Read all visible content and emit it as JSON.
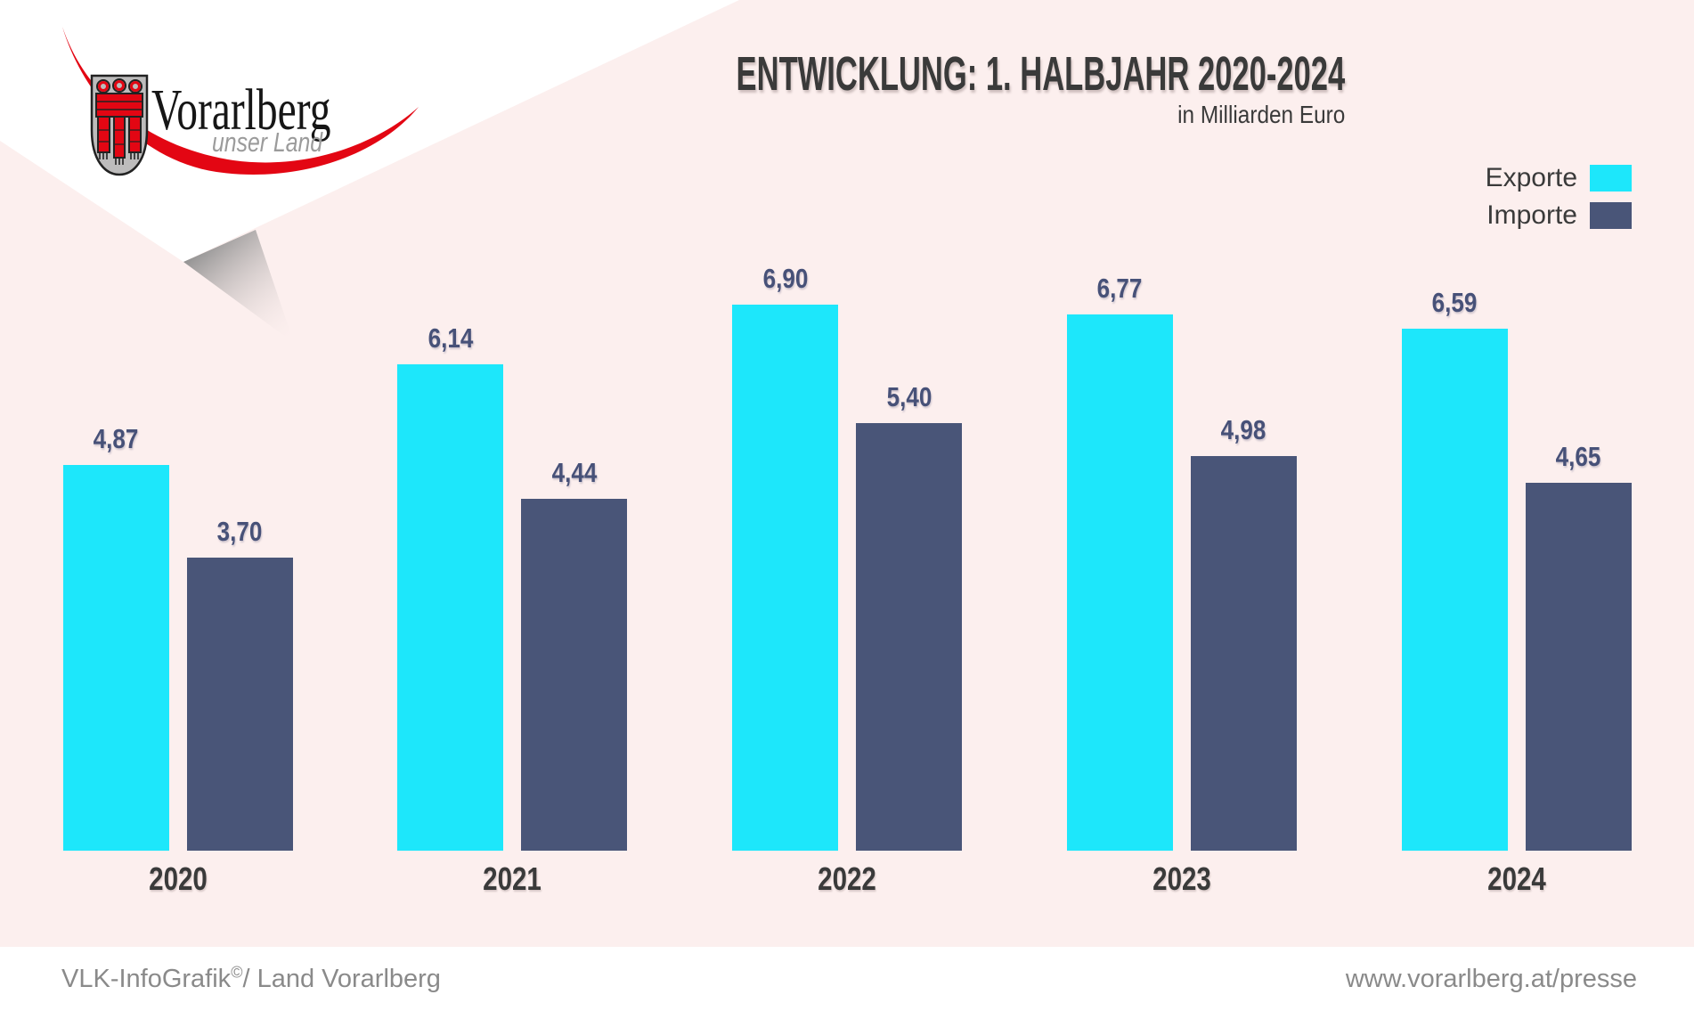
{
  "logo": {
    "name": "Vorarlberg",
    "tagline": "unser Land"
  },
  "header": {
    "title": "ENTWICKLUNG: 1. HALBJAHR 2020-2024",
    "subtitle": "in Milliarden Euro"
  },
  "chart_data": {
    "type": "bar",
    "title": "ENTWICKLUNG: 1. HALBJAHR 2020-2024",
    "unit": "Milliarden Euro",
    "categories": [
      "2020",
      "2021",
      "2022",
      "2023",
      "2024"
    ],
    "series": [
      {
        "name": "Exporte",
        "color": "#1de7fb",
        "values": [
          4.87,
          6.14,
          6.9,
          6.77,
          6.59
        ],
        "labels": [
          "4,87",
          "6,14",
          "6,90",
          "6,77",
          "6,59"
        ]
      },
      {
        "name": "Importe",
        "color": "#495578",
        "values": [
          3.7,
          4.44,
          5.4,
          4.98,
          4.65
        ],
        "labels": [
          "3,70",
          "4,44",
          "5,40",
          "4,98",
          "4,65"
        ]
      }
    ],
    "ylim": [
      0,
      7.45
    ],
    "grid": false,
    "legend_position": "top-right",
    "value_labels": true
  },
  "footer": {
    "left_main": "VLK-InfoGrafik",
    "left_sup": "©",
    "left_rest": "/ Land Vorarlberg",
    "right": "www.vorarlberg.at/presse"
  },
  "colors": {
    "background": "#fcefee",
    "banner_white": "#ffffff",
    "title_text": "#3a3a3a",
    "value_label": "#475178",
    "footer_text": "#8a8a8a",
    "logo_red": "#e30613",
    "shield_silver": "#bdbcbc",
    "export": "#1de7fb",
    "import": "#495578"
  }
}
